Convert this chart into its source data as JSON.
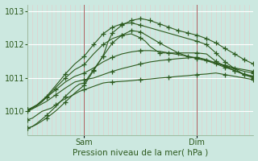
{
  "xlabel": "Pression niveau de la mer( hPa )",
  "bg_color": "#cce8e0",
  "grid_color_major": "#ffffff",
  "grid_color_minor": "#e8c8c8",
  "line_color": "#2d5a1e",
  "ylim": [
    1009.3,
    1013.2
  ],
  "xlim": [
    0,
    48
  ],
  "yticks": [
    1010,
    1011,
    1012,
    1013
  ],
  "xtick_positions": [
    12,
    36
  ],
  "xtick_labels": [
    "Sam",
    "Dim"
  ],
  "vline_positions": [
    12,
    36
  ],
  "vline_color": "#b06060",
  "series": [
    {
      "x": [
        0,
        1,
        2,
        3,
        4,
        5,
        6,
        7,
        8,
        9,
        10,
        11,
        12,
        13,
        14,
        15,
        16,
        17,
        18,
        20,
        22,
        24,
        26,
        28,
        30,
        32,
        34,
        36,
        38,
        40,
        42,
        44,
        46,
        48
      ],
      "y": [
        1009.75,
        1009.8,
        1009.9,
        1010.0,
        1010.05,
        1010.1,
        1010.2,
        1010.3,
        1010.38,
        1010.45,
        1010.52,
        1010.6,
        1010.65,
        1010.7,
        1010.75,
        1010.8,
        1010.85,
        1010.87,
        1010.88,
        1010.9,
        1010.92,
        1010.95,
        1010.97,
        1011.0,
        1011.02,
        1011.05,
        1011.07,
        1011.1,
        1011.12,
        1011.15,
        1011.1,
        1011.05,
        1011.0,
        1010.95
      ],
      "marker_x": [
        0,
        6,
        12,
        18,
        24,
        30,
        36,
        42,
        48
      ],
      "marker_y": [
        1009.75,
        1010.2,
        1010.65,
        1010.87,
        1010.95,
        1011.02,
        1011.1,
        1011.1,
        1010.95
      ]
    },
    {
      "x": [
        0,
        2,
        4,
        6,
        8,
        10,
        12,
        14,
        16,
        18,
        20,
        22,
        24,
        26,
        28,
        30,
        32,
        34,
        36,
        38,
        40,
        42,
        44,
        46,
        48
      ],
      "y": [
        1010.0,
        1010.15,
        1010.3,
        1010.5,
        1010.7,
        1010.88,
        1010.95,
        1011.0,
        1011.1,
        1011.2,
        1011.28,
        1011.35,
        1011.42,
        1011.48,
        1011.52,
        1011.55,
        1011.58,
        1011.6,
        1011.62,
        1011.55,
        1011.45,
        1011.35,
        1011.28,
        1011.2,
        1011.15
      ],
      "marker_x": [
        0,
        6,
        12,
        18,
        24,
        30,
        36,
        42,
        48
      ],
      "marker_y": [
        1010.0,
        1010.5,
        1010.95,
        1011.2,
        1011.42,
        1011.55,
        1011.62,
        1011.35,
        1011.15
      ]
    },
    {
      "x": [
        0,
        2,
        4,
        6,
        8,
        10,
        12,
        14,
        16,
        18,
        20,
        22,
        24,
        26,
        28,
        30,
        32,
        34,
        36,
        38,
        40,
        42,
        44,
        46,
        48
      ],
      "y": [
        1010.05,
        1010.2,
        1010.42,
        1010.65,
        1010.88,
        1011.05,
        1011.15,
        1011.3,
        1011.48,
        1011.62,
        1011.72,
        1011.78,
        1011.82,
        1011.82,
        1011.8,
        1011.75,
        1011.7,
        1011.65,
        1011.6,
        1011.52,
        1011.45,
        1011.38,
        1011.3,
        1011.25,
        1011.2
      ],
      "marker_x": [
        0,
        6,
        12,
        18,
        24,
        30,
        36,
        42,
        48
      ],
      "marker_y": [
        1010.05,
        1010.65,
        1011.15,
        1011.62,
        1011.82,
        1011.75,
        1011.6,
        1011.38,
        1011.2
      ]
    },
    {
      "x": [
        0,
        1,
        2,
        3,
        4,
        6,
        8,
        10,
        12,
        14,
        16,
        18,
        20,
        22,
        24,
        25,
        26,
        28,
        36,
        38,
        40,
        42,
        44,
        46,
        48
      ],
      "y": [
        1010.05,
        1010.1,
        1010.18,
        1010.28,
        1010.42,
        1010.72,
        1011.0,
        1011.25,
        1011.4,
        1011.72,
        1012.0,
        1012.18,
        1012.28,
        1012.32,
        1012.2,
        1012.1,
        1011.95,
        1011.75,
        1011.75,
        1011.72,
        1011.5,
        1011.35,
        1011.22,
        1011.1,
        1011.05
      ],
      "marker_x": [
        0,
        4,
        8,
        12,
        16,
        20,
        24,
        28,
        36,
        40,
        44,
        48
      ],
      "marker_y": [
        1010.05,
        1010.42,
        1011.0,
        1011.4,
        1012.0,
        1012.28,
        1012.2,
        1011.75,
        1011.75,
        1011.5,
        1011.22,
        1011.05
      ]
    },
    {
      "x": [
        0,
        1,
        2,
        4,
        6,
        8,
        10,
        12,
        14,
        16,
        18,
        20,
        22,
        24,
        36,
        38,
        40,
        42,
        44,
        46,
        48
      ],
      "y": [
        1010.05,
        1010.1,
        1010.2,
        1010.45,
        1010.78,
        1011.12,
        1011.42,
        1011.65,
        1012.0,
        1012.32,
        1012.52,
        1012.62,
        1012.65,
        1012.58,
        1012.1,
        1012.0,
        1011.75,
        1011.48,
        1011.28,
        1011.1,
        1011.0
      ],
      "marker_x": [
        0,
        4,
        8,
        12,
        14,
        16,
        18,
        20,
        22,
        24,
        36,
        38,
        40,
        42,
        44,
        46,
        48
      ],
      "marker_y": [
        1010.05,
        1010.45,
        1011.12,
        1011.65,
        1012.0,
        1012.32,
        1012.52,
        1012.62,
        1012.65,
        1012.58,
        1012.1,
        1012.0,
        1011.75,
        1011.48,
        1011.28,
        1011.1,
        1011.0
      ]
    },
    {
      "x": [
        0,
        1,
        2,
        4,
        6,
        8,
        10,
        12,
        14,
        16,
        18,
        20,
        22,
        24,
        28,
        32,
        34,
        36,
        38,
        40,
        42,
        44,
        46,
        48
      ],
      "y": [
        1009.5,
        1009.55,
        1009.62,
        1009.8,
        1010.02,
        1010.28,
        1010.55,
        1010.78,
        1011.22,
        1011.65,
        1012.05,
        1012.28,
        1012.42,
        1012.38,
        1012.05,
        1011.75,
        1011.65,
        1011.58,
        1011.52,
        1011.42,
        1011.32,
        1011.22,
        1011.12,
        1011.05
      ],
      "marker_x": [
        0,
        4,
        8,
        12,
        14,
        16,
        18,
        20,
        22,
        24,
        28,
        32,
        34,
        36,
        38,
        40,
        42,
        44,
        46,
        48
      ],
      "marker_y": [
        1009.5,
        1009.8,
        1010.28,
        1010.78,
        1011.22,
        1011.65,
        1012.05,
        1012.28,
        1012.42,
        1012.38,
        1012.05,
        1011.75,
        1011.65,
        1011.58,
        1011.52,
        1011.42,
        1011.32,
        1011.22,
        1011.12,
        1011.05
      ]
    },
    {
      "x": [
        0,
        1,
        2,
        4,
        6,
        8,
        10,
        11,
        12,
        14,
        16,
        17,
        18,
        20,
        22,
        24,
        26,
        28,
        30,
        32,
        34,
        36,
        38,
        40,
        42,
        44,
        46,
        48
      ],
      "y": [
        1009.5,
        1009.55,
        1009.65,
        1009.88,
        1010.15,
        1010.45,
        1010.72,
        1010.82,
        1010.85,
        1011.25,
        1011.65,
        1012.05,
        1012.35,
        1012.58,
        1012.72,
        1012.78,
        1012.72,
        1012.62,
        1012.52,
        1012.42,
        1012.35,
        1012.28,
        1012.18,
        1012.05,
        1011.88,
        1011.72,
        1011.55,
        1011.42
      ],
      "marker_x": [
        0,
        4,
        8,
        12,
        14,
        16,
        18,
        20,
        22,
        24,
        26,
        28,
        30,
        32,
        34,
        36,
        38,
        40,
        42,
        44,
        46,
        48
      ],
      "marker_y": [
        1009.5,
        1009.88,
        1010.45,
        1010.85,
        1011.25,
        1011.65,
        1012.35,
        1012.58,
        1012.72,
        1012.78,
        1012.72,
        1012.62,
        1012.52,
        1012.42,
        1012.35,
        1012.28,
        1012.18,
        1012.05,
        1011.88,
        1011.72,
        1011.55,
        1011.42
      ]
    }
  ]
}
